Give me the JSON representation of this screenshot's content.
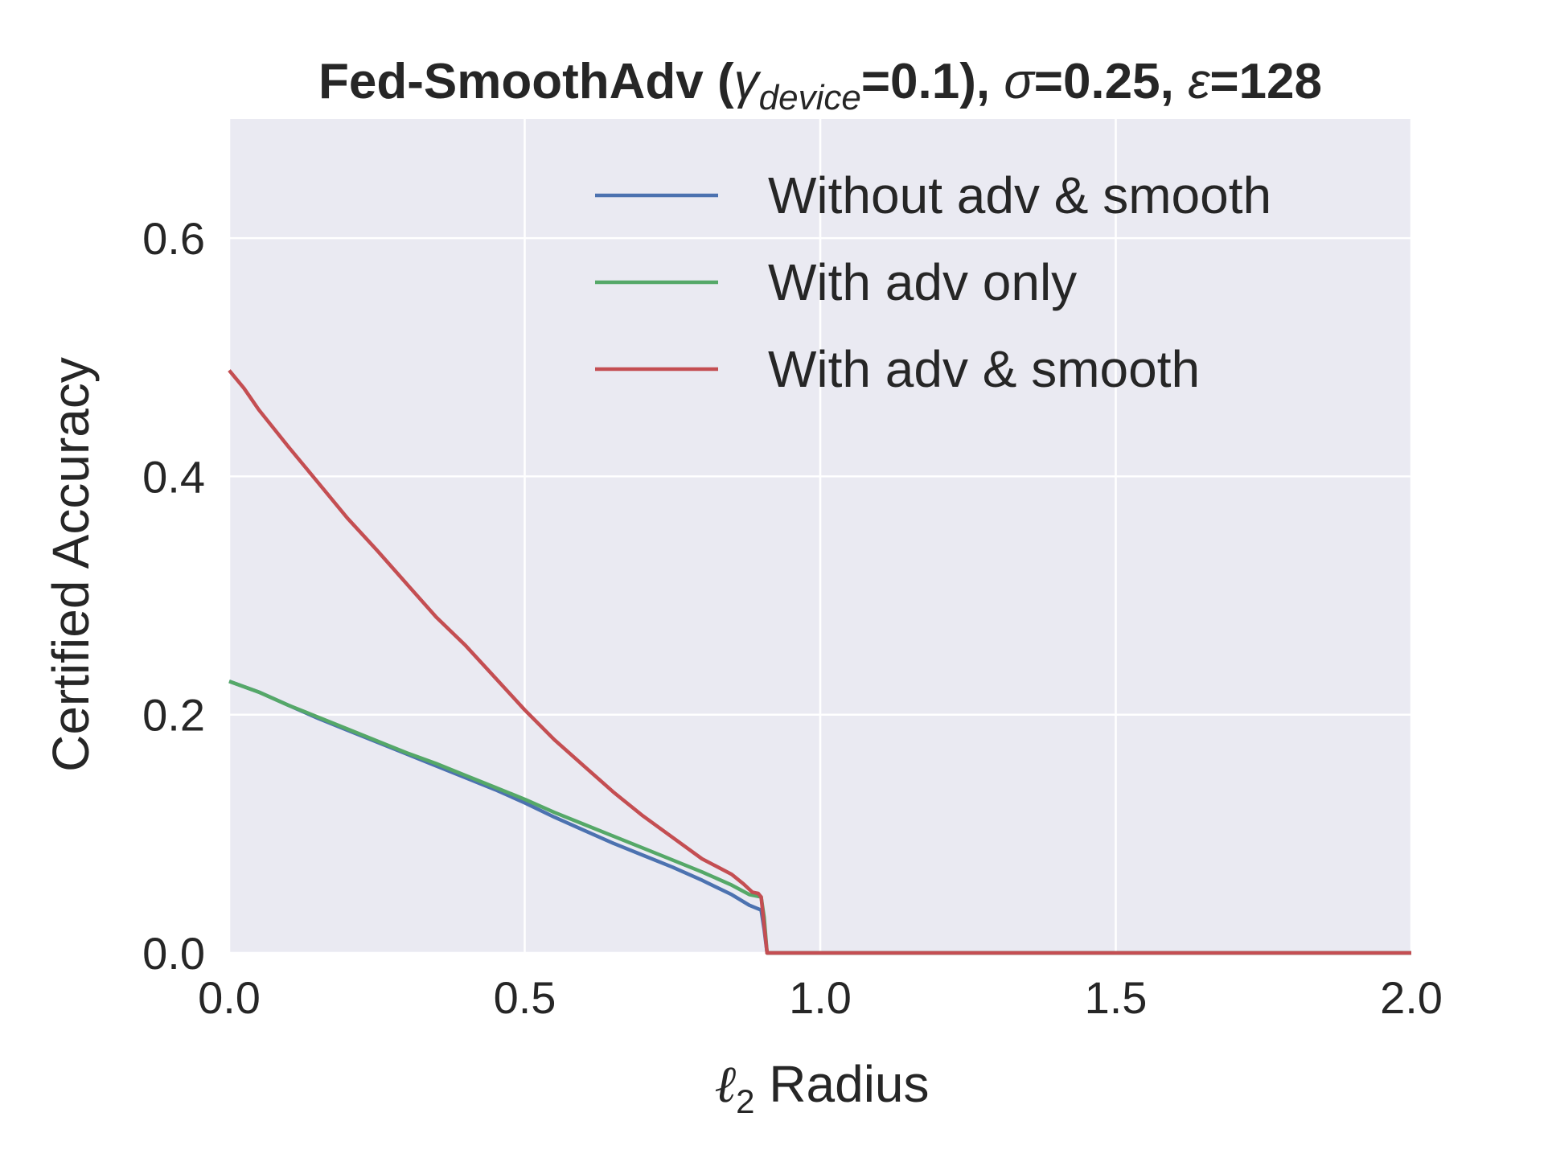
{
  "chart_data": {
    "type": "line",
    "title": {
      "prefix": "Fed-SmoothAdv (",
      "gamma": "γ",
      "gamma_sub": "device",
      "middle": "=0.1), ",
      "sigma": "σ",
      "sigma_val": "=0.25, ",
      "eps": "ε",
      "eps_val": "=128"
    },
    "xlabel": {
      "ell": "ℓ",
      "sub": "2",
      "text": " Radius"
    },
    "ylabel": "Certified Accuracy",
    "xlim": [
      0.0,
      2.0
    ],
    "ylim": [
      0.0,
      0.7
    ],
    "xticks": [
      "0.0",
      "0.5",
      "1.0",
      "1.5",
      "2.0"
    ],
    "yticks": [
      "0.0",
      "0.2",
      "0.4",
      "0.6"
    ],
    "grid": true,
    "legend_position": "top-right",
    "colors": {
      "background": "#EAEAF2",
      "grid": "#FFFFFF",
      "text": "#262626"
    },
    "series": [
      {
        "name": "Without adv & smooth",
        "color": "#4C72B0",
        "x": [
          0.0,
          0.05,
          0.1,
          0.15,
          0.2,
          0.25,
          0.3,
          0.35,
          0.4,
          0.45,
          0.5,
          0.55,
          0.6,
          0.65,
          0.7,
          0.75,
          0.8,
          0.85,
          0.88,
          0.9,
          0.905,
          0.91,
          1.0,
          1.5,
          2.0
        ],
        "y": [
          0.228,
          0.219,
          0.208,
          0.197,
          0.187,
          0.177,
          0.167,
          0.157,
          0.147,
          0.137,
          0.126,
          0.114,
          0.103,
          0.092,
          0.082,
          0.072,
          0.061,
          0.049,
          0.04,
          0.036,
          0.02,
          0.0,
          0.0,
          0.0,
          0.0
        ]
      },
      {
        "name": "With adv only",
        "color": "#55A868",
        "x": [
          0.0,
          0.05,
          0.1,
          0.15,
          0.2,
          0.25,
          0.3,
          0.35,
          0.4,
          0.45,
          0.5,
          0.55,
          0.6,
          0.65,
          0.7,
          0.75,
          0.8,
          0.85,
          0.88,
          0.9,
          0.905,
          0.91,
          1.0,
          1.5,
          2.0
        ],
        "y": [
          0.228,
          0.219,
          0.208,
          0.198,
          0.188,
          0.178,
          0.168,
          0.159,
          0.149,
          0.139,
          0.129,
          0.118,
          0.108,
          0.098,
          0.088,
          0.078,
          0.068,
          0.057,
          0.049,
          0.047,
          0.03,
          0.0,
          0.0,
          0.0,
          0.0
        ]
      },
      {
        "name": "With adv & smooth",
        "color": "#C44E52",
        "x": [
          0.0,
          0.025,
          0.05,
          0.1,
          0.15,
          0.2,
          0.25,
          0.3,
          0.35,
          0.4,
          0.45,
          0.5,
          0.55,
          0.6,
          0.65,
          0.7,
          0.75,
          0.8,
          0.85,
          0.87,
          0.885,
          0.895,
          0.9,
          0.91,
          1.0,
          1.5,
          2.0
        ],
        "y": [
          0.489,
          0.474,
          0.456,
          0.425,
          0.395,
          0.365,
          0.338,
          0.31,
          0.282,
          0.258,
          0.231,
          0.204,
          0.179,
          0.157,
          0.135,
          0.115,
          0.097,
          0.079,
          0.066,
          0.058,
          0.051,
          0.05,
          0.047,
          0.0,
          0.0,
          0.0,
          0.0
        ]
      }
    ]
  }
}
